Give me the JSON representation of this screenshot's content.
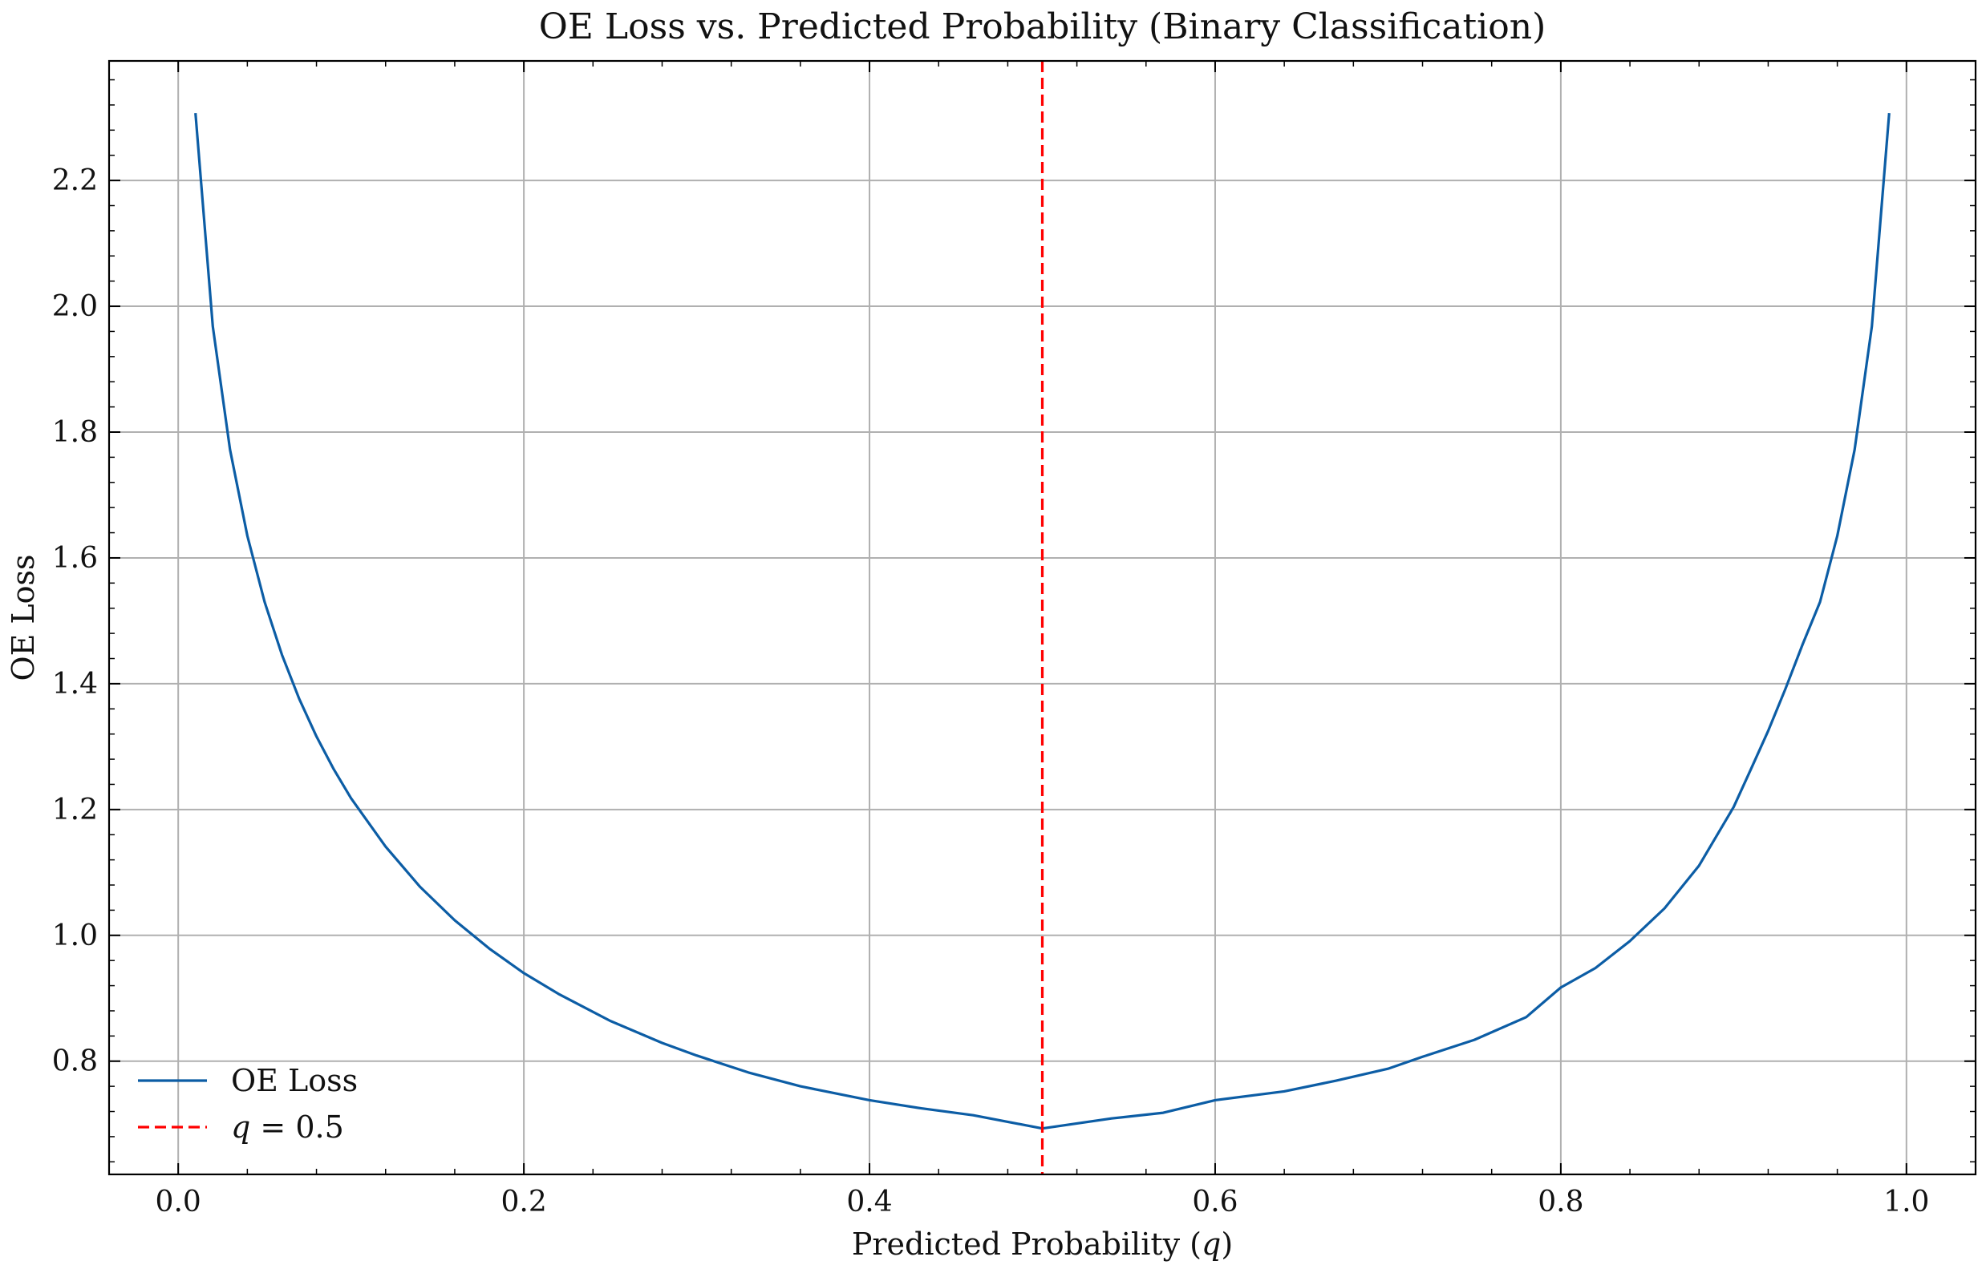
{
  "chart_data": {
    "type": "line",
    "title": "OE Loss vs. Predicted Probability (Binary Classification)",
    "xlabel_prefix": "Predicted Probability (",
    "xlabel_var": "q",
    "xlabel_suffix": ")",
    "ylabel": "OE Loss",
    "xlim": [
      -0.04,
      1.04
    ],
    "ylim": [
      0.62,
      2.39
    ],
    "x_ticks": [
      0.0,
      0.2,
      0.4,
      0.6,
      0.8,
      1.0
    ],
    "x_tick_labels": [
      "0.0",
      "0.2",
      "0.4",
      "0.6",
      "0.8",
      "1.0"
    ],
    "y_ticks": [
      0.8,
      1.0,
      1.2,
      1.4,
      1.6,
      1.8,
      2.0,
      2.2
    ],
    "y_tick_labels": [
      "0.8",
      "1.0",
      "1.2",
      "1.4",
      "1.6",
      "1.8",
      "2.0",
      "2.2"
    ],
    "grid": true,
    "legend_position": "lower-left",
    "series": [
      {
        "name": "OE Loss",
        "color": "#0c5da5",
        "style": "solid",
        "x": [
          0.01,
          0.02,
          0.03,
          0.04,
          0.05,
          0.06,
          0.07,
          0.08,
          0.09,
          0.1,
          0.12,
          0.14,
          0.16,
          0.18,
          0.2,
          0.22,
          0.25,
          0.28,
          0.3,
          0.33,
          0.36,
          0.4,
          0.43,
          0.46,
          0.5,
          0.54,
          0.57,
          0.6,
          0.64,
          0.67,
          0.7,
          0.72,
          0.75,
          0.78,
          0.8,
          0.82,
          0.84,
          0.86,
          0.88,
          0.9,
          0.91,
          0.92,
          0.93,
          0.94,
          0.95,
          0.96,
          0.97,
          0.98,
          0.99
        ],
        "y": [
          2.307,
          1.968,
          1.772,
          1.635,
          1.53,
          1.446,
          1.376,
          1.316,
          1.264,
          1.218,
          1.141,
          1.077,
          1.024,
          0.979,
          0.94,
          0.907,
          0.864,
          0.829,
          0.809,
          0.782,
          0.76,
          0.738,
          0.725,
          0.714,
          0.693,
          0.709,
          0.718,
          0.738,
          0.752,
          0.769,
          0.788,
          0.807,
          0.834,
          0.87,
          0.917,
          0.948,
          0.991,
          1.043,
          1.111,
          1.204,
          1.264,
          1.325,
          1.392,
          1.463,
          1.53,
          1.635,
          1.772,
          1.968,
          2.307
        ]
      },
      {
        "name_var": "q",
        "name_rest": " = 0.5",
        "color": "#ff0000",
        "style": "dashed",
        "vertical_x": 0.5
      }
    ]
  }
}
